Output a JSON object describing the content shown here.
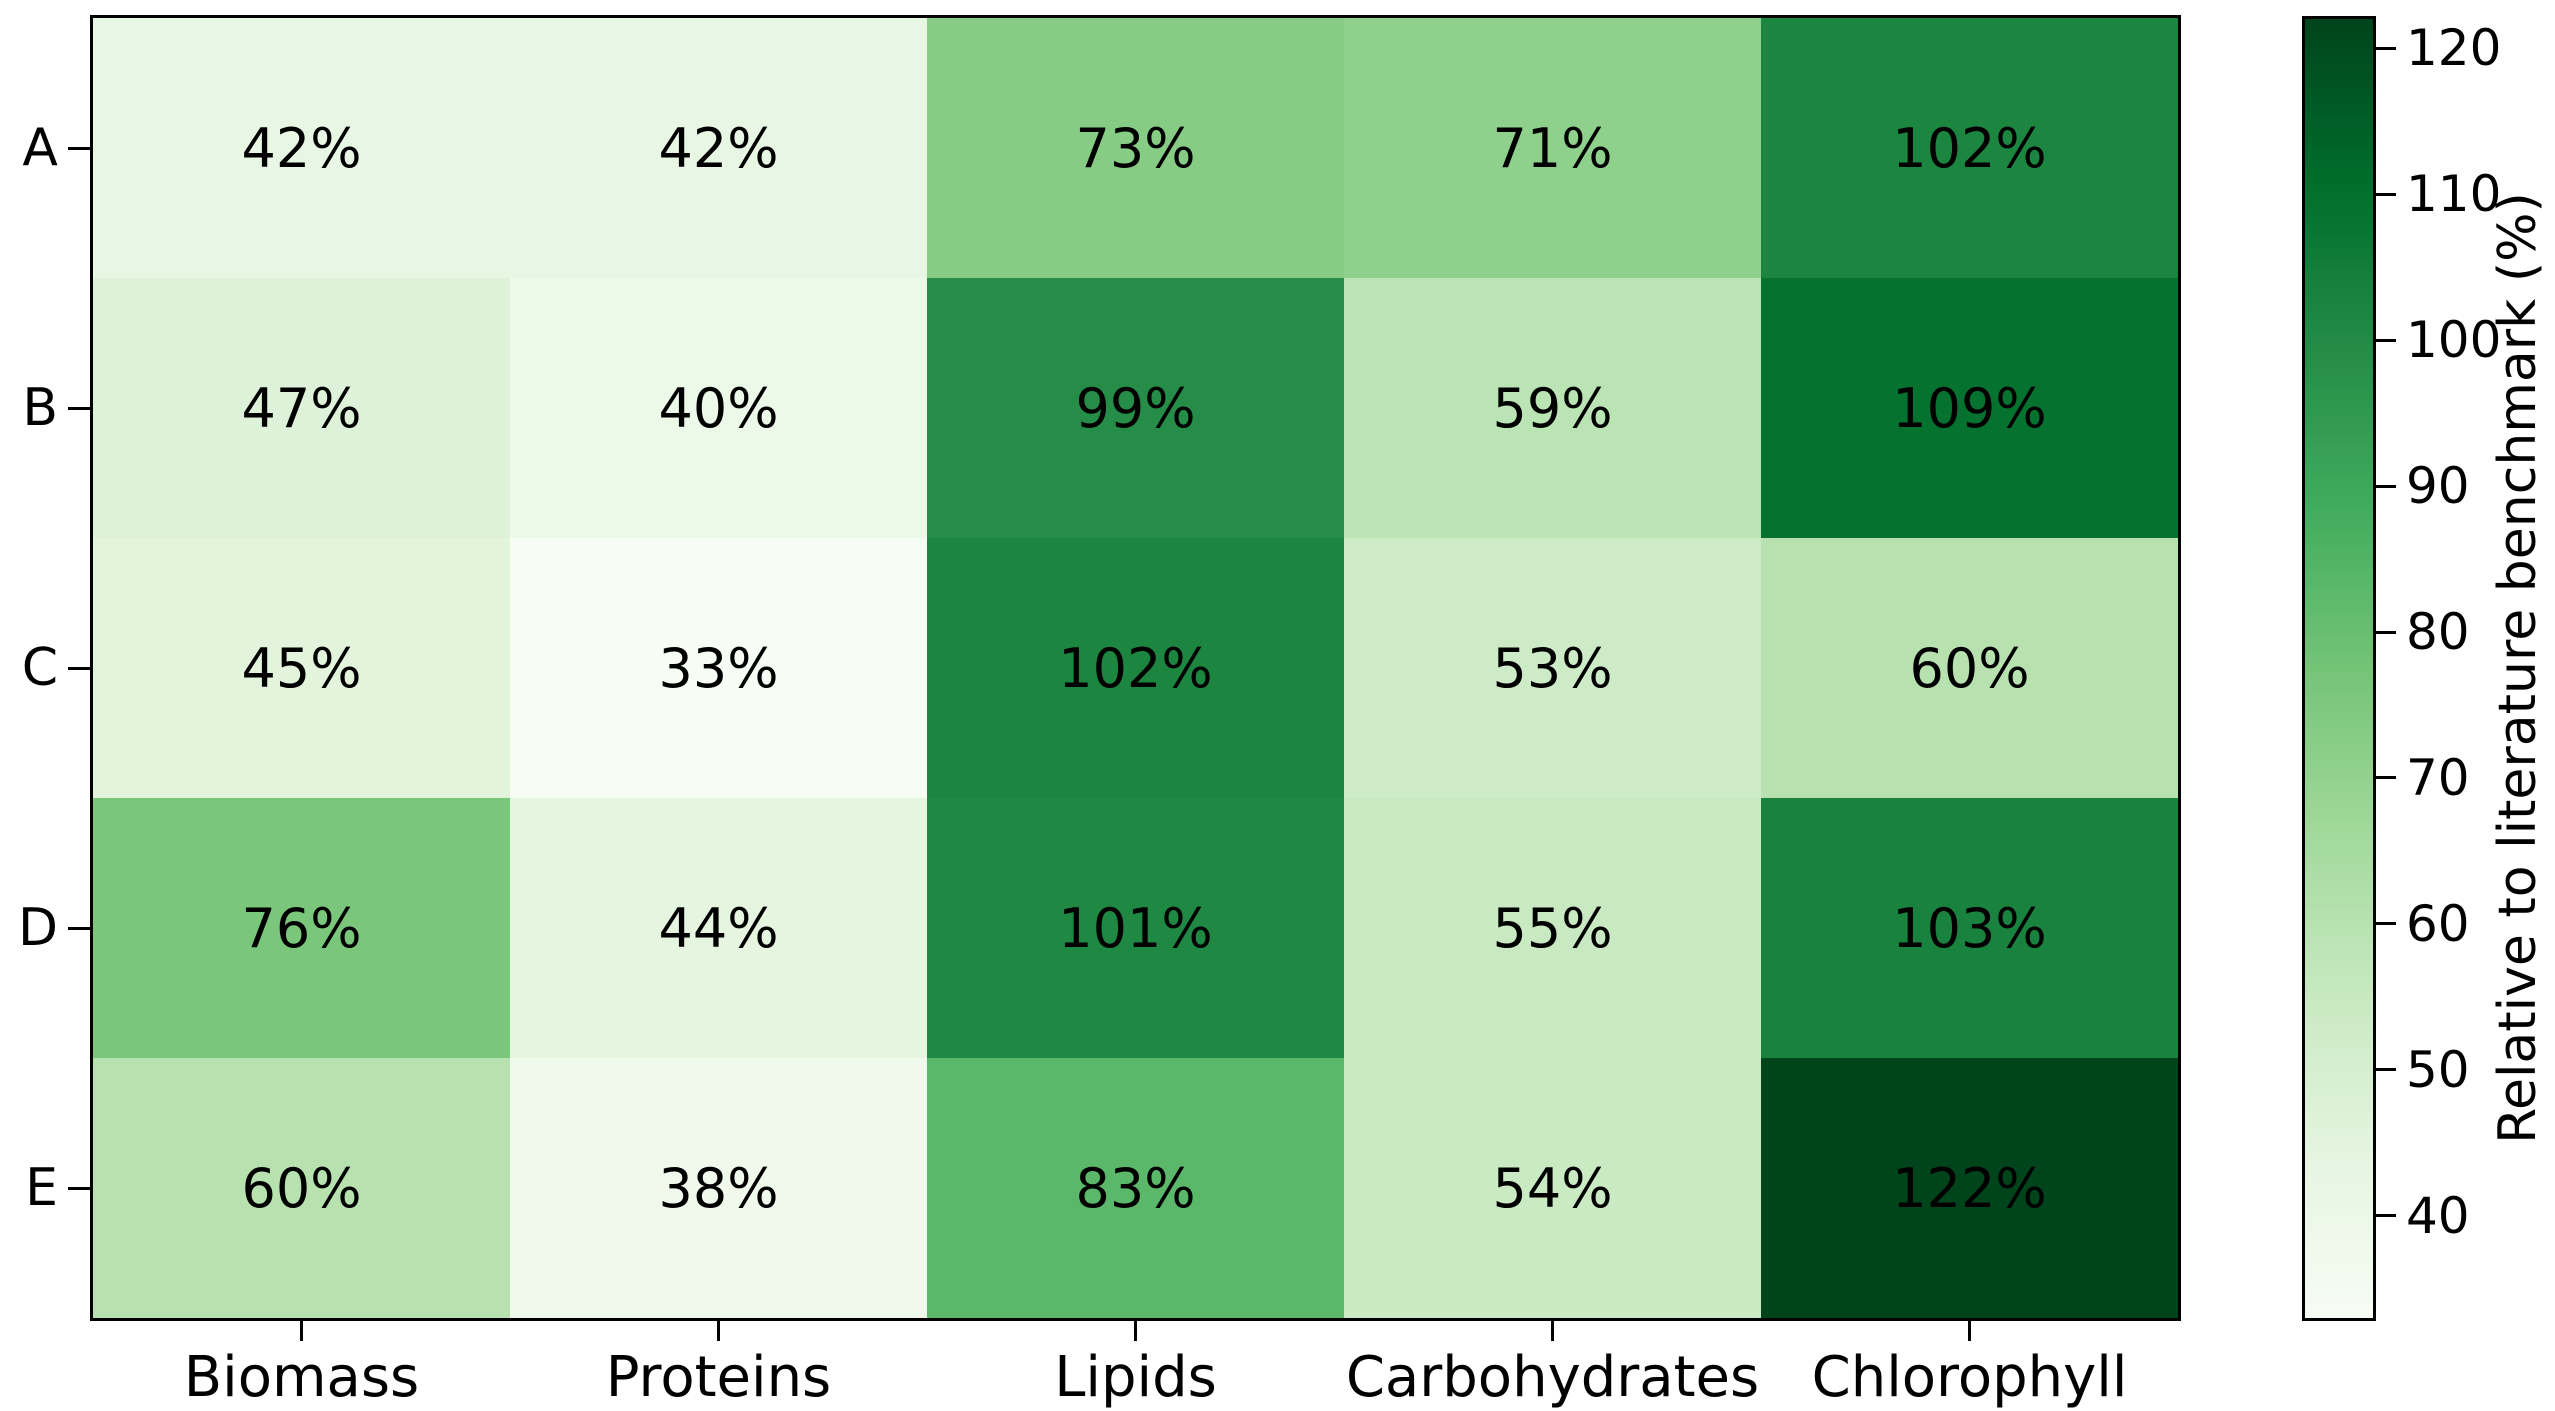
{
  "chart_data": {
    "type": "heatmap",
    "rows": [
      "A",
      "B",
      "C",
      "D",
      "E"
    ],
    "columns": [
      "Biomass",
      "Proteins",
      "Lipids",
      "Carbohydrates",
      "Chlorophyll"
    ],
    "values": [
      [
        42,
        42,
        73,
        71,
        102
      ],
      [
        47,
        40,
        99,
        59,
        109
      ],
      [
        45,
        33,
        102,
        53,
        60
      ],
      [
        76,
        44,
        101,
        55,
        103
      ],
      [
        60,
        38,
        83,
        54,
        122
      ]
    ],
    "annotation_format": "{v}%",
    "annotation_color": "#000000",
    "vmin": 33,
    "vmax": 122,
    "grid": "off",
    "colormap": {
      "name": "Greens",
      "anchors": [
        [
          0.0,
          "#f7fcf5"
        ],
        [
          0.125,
          "#e5f5e0"
        ],
        [
          0.25,
          "#c7e9c0"
        ],
        [
          0.375,
          "#a1d99b"
        ],
        [
          0.5,
          "#74c476"
        ],
        [
          0.625,
          "#41ab5d"
        ],
        [
          0.75,
          "#238b45"
        ],
        [
          0.875,
          "#006d2c"
        ],
        [
          1.0,
          "#00441b"
        ]
      ]
    },
    "colorbar": {
      "label": "Relative to literature benchmark (%)",
      "ticks": [
        40,
        50,
        60,
        70,
        80,
        90,
        100,
        110,
        120
      ],
      "position": "right"
    }
  }
}
